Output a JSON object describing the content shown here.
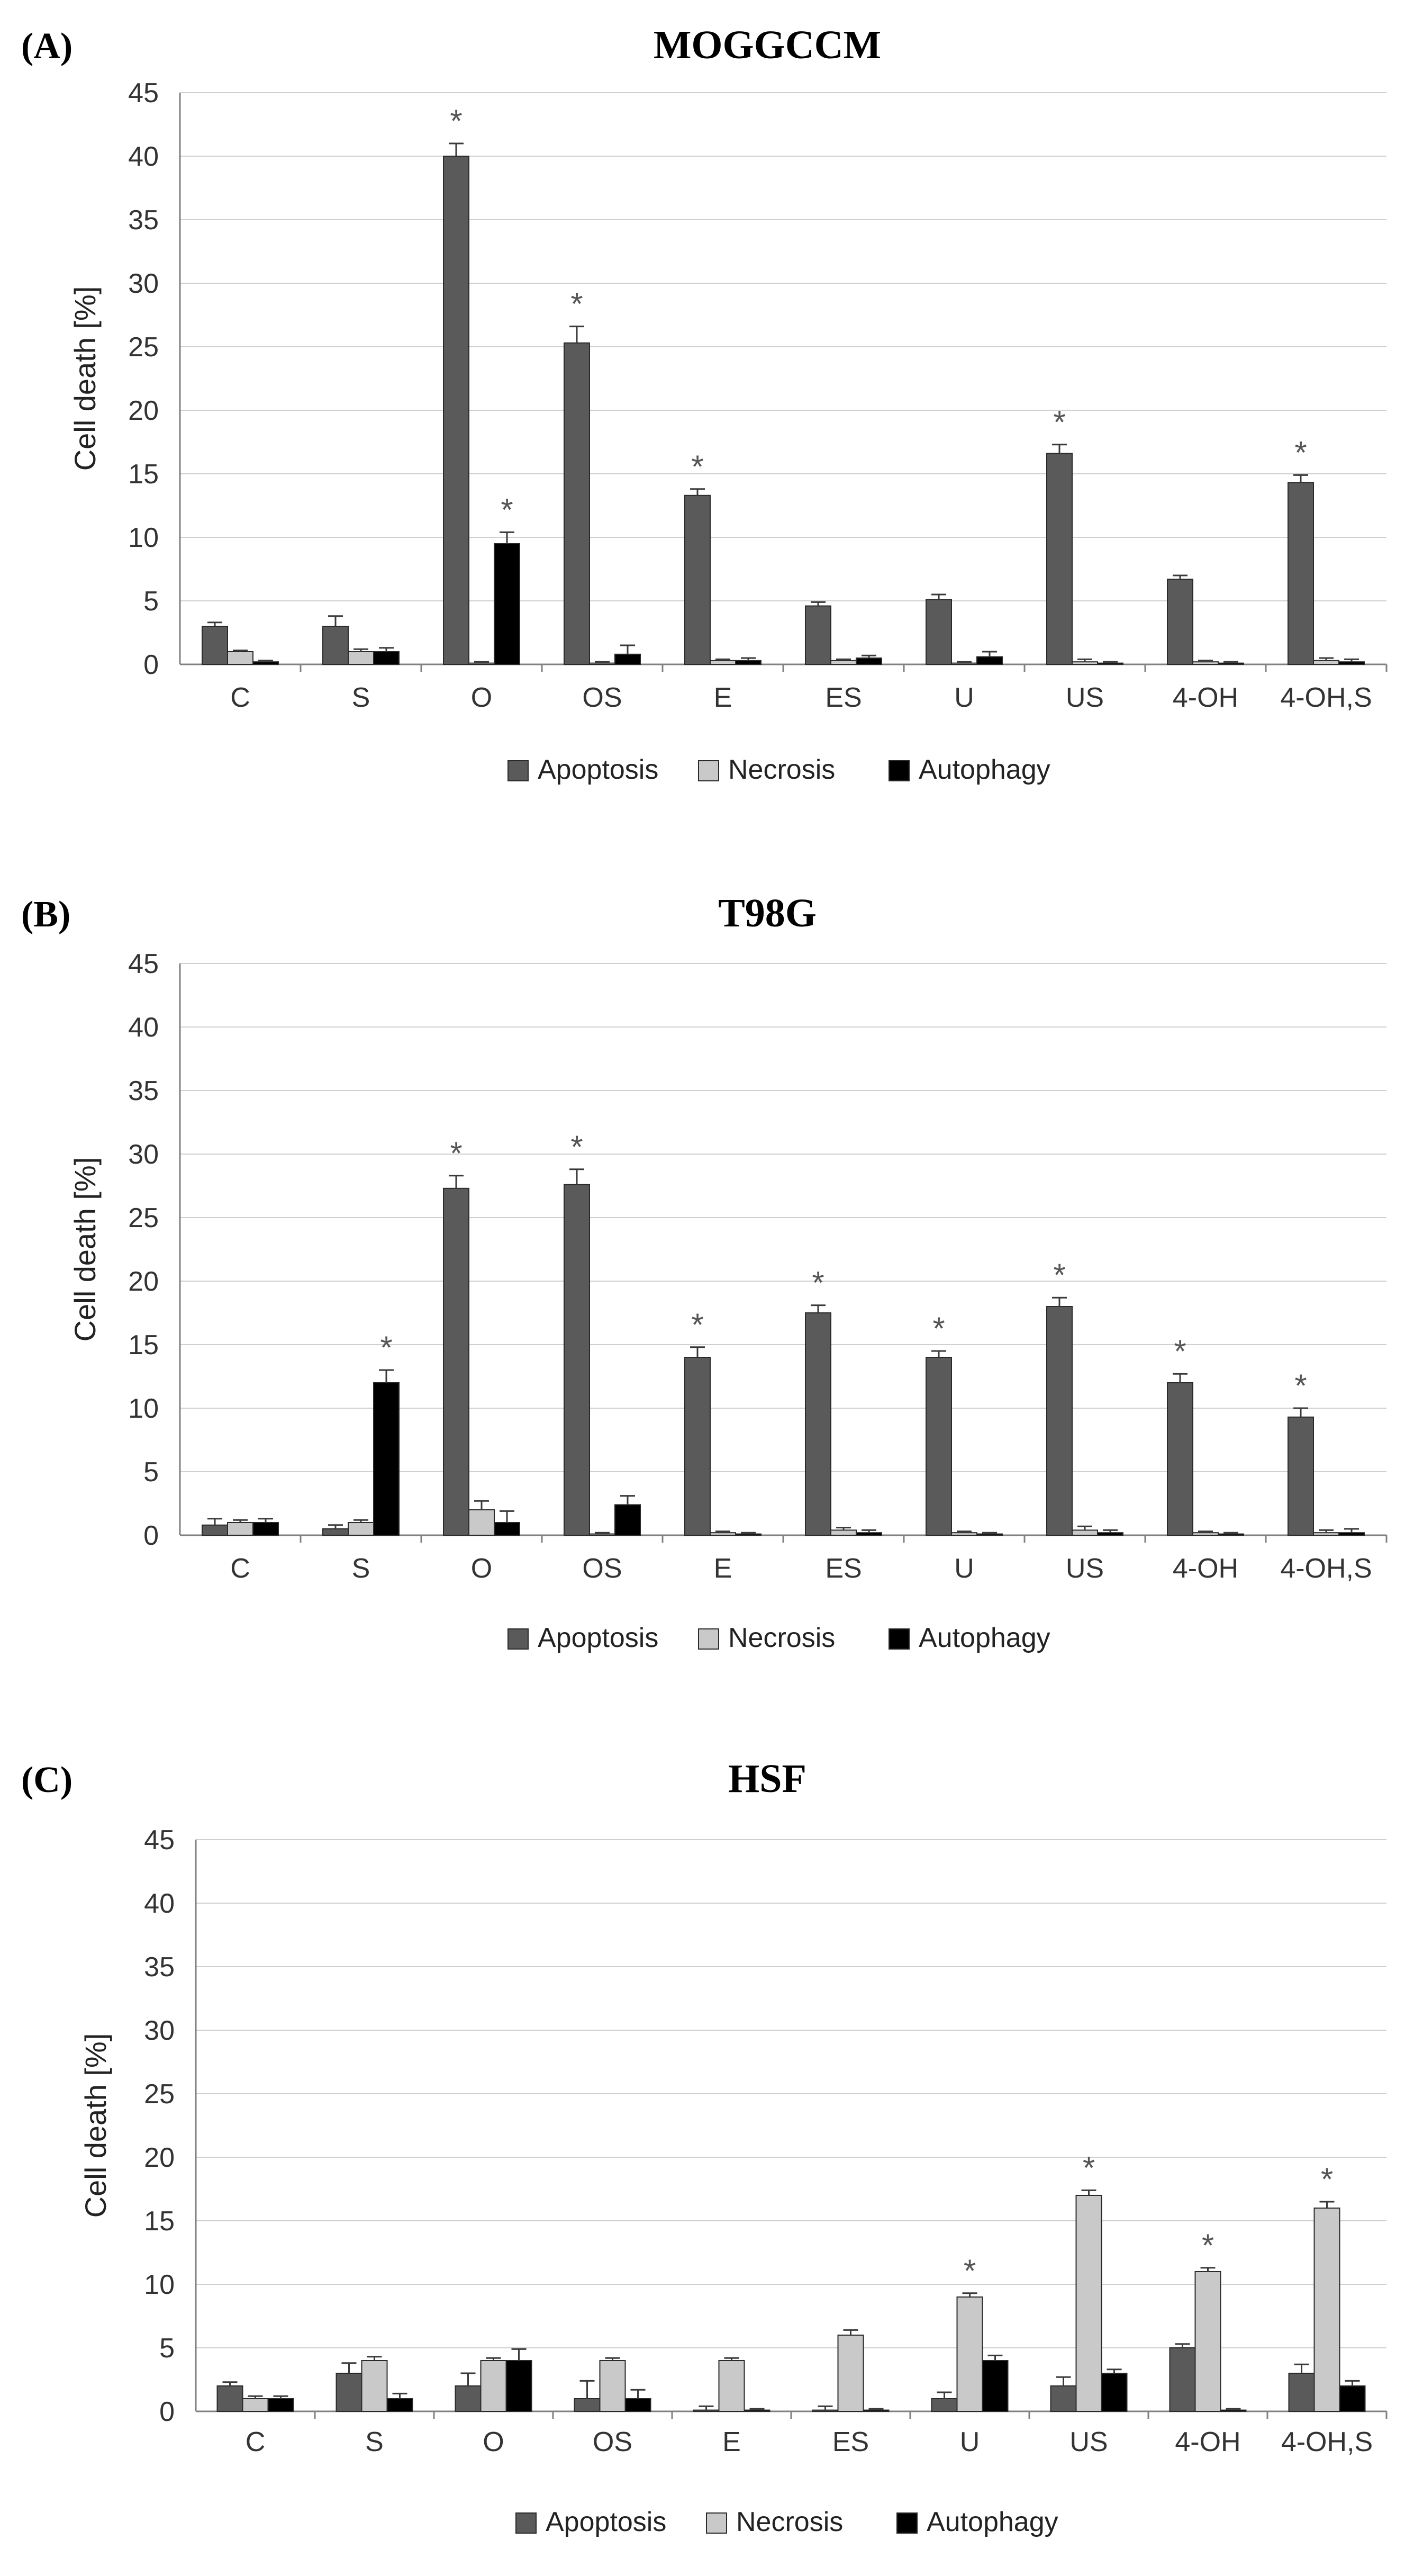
{
  "colors": {
    "Apoptosis": "#5a5a5a",
    "Necrosis": "#c9c9c9",
    "Autophagy": "#000000"
  },
  "chart_data": [
    {
      "type": "bar",
      "panel": "(A)",
      "title": "MOGGCCM",
      "ylabel": "Cell death [%]",
      "xlabel": "",
      "ylim": [
        0,
        45
      ],
      "yticks": [
        0,
        5,
        10,
        15,
        20,
        25,
        30,
        35,
        40,
        45
      ],
      "grid": true,
      "legend": "bottom",
      "categories": [
        "C",
        "S",
        "O",
        "OS",
        "E",
        "ES",
        "U",
        "US",
        "4-OH",
        "4-OH,S"
      ],
      "series": [
        {
          "name": "Apoptosis",
          "values": [
            3.0,
            3.0,
            40.0,
            25.3,
            13.3,
            4.6,
            5.1,
            16.6,
            6.7,
            14.3
          ],
          "errors": [
            0.3,
            0.8,
            1.0,
            1.3,
            0.5,
            0.3,
            0.4,
            0.7,
            0.3,
            0.6
          ],
          "stars": [
            false,
            false,
            true,
            true,
            true,
            false,
            false,
            true,
            false,
            true
          ]
        },
        {
          "name": "Necrosis",
          "values": [
            1.0,
            1.0,
            0.1,
            0.1,
            0.3,
            0.3,
            0.1,
            0.2,
            0.2,
            0.3
          ],
          "errors": [
            0.1,
            0.2,
            0.1,
            0.1,
            0.1,
            0.1,
            0.1,
            0.2,
            0.1,
            0.2
          ],
          "stars": [
            false,
            false,
            false,
            false,
            false,
            false,
            false,
            false,
            false,
            false
          ]
        },
        {
          "name": "Autophagy",
          "values": [
            0.2,
            1.0,
            9.5,
            0.8,
            0.3,
            0.5,
            0.6,
            0.1,
            0.1,
            0.2
          ],
          "errors": [
            0.1,
            0.3,
            0.9,
            0.7,
            0.2,
            0.2,
            0.4,
            0.1,
            0.1,
            0.2
          ],
          "stars": [
            false,
            false,
            true,
            false,
            false,
            false,
            false,
            false,
            false,
            false
          ]
        }
      ]
    },
    {
      "type": "bar",
      "panel": "(B)",
      "title": "T98G",
      "ylabel": "Cell death [%]",
      "xlabel": "",
      "ylim": [
        0,
        45
      ],
      "yticks": [
        0,
        5,
        10,
        15,
        20,
        25,
        30,
        35,
        40,
        45
      ],
      "grid": true,
      "legend": "bottom",
      "categories": [
        "C",
        "S",
        "O",
        "OS",
        "E",
        "ES",
        "U",
        "US",
        "4-OH",
        "4-OH,S"
      ],
      "series": [
        {
          "name": "Apoptosis",
          "values": [
            0.8,
            0.5,
            27.3,
            27.6,
            14.0,
            17.5,
            14.0,
            18.0,
            12.0,
            9.3
          ],
          "errors": [
            0.5,
            0.3,
            1.0,
            1.2,
            0.8,
            0.6,
            0.5,
            0.7,
            0.7,
            0.7
          ],
          "stars": [
            false,
            false,
            true,
            true,
            true,
            true,
            true,
            true,
            true,
            true
          ]
        },
        {
          "name": "Necrosis",
          "values": [
            1.0,
            1.0,
            2.0,
            0.1,
            0.2,
            0.4,
            0.2,
            0.4,
            0.2,
            0.2
          ],
          "errors": [
            0.2,
            0.2,
            0.7,
            0.1,
            0.1,
            0.2,
            0.1,
            0.3,
            0.1,
            0.2
          ],
          "stars": [
            false,
            false,
            false,
            false,
            false,
            false,
            false,
            false,
            false,
            false
          ]
        },
        {
          "name": "Autophagy",
          "values": [
            1.0,
            12.0,
            1.0,
            2.4,
            0.1,
            0.2,
            0.1,
            0.2,
            0.1,
            0.2
          ],
          "errors": [
            0.3,
            1.0,
            0.9,
            0.7,
            0.1,
            0.2,
            0.1,
            0.2,
            0.1,
            0.3
          ],
          "stars": [
            false,
            true,
            false,
            false,
            false,
            false,
            false,
            false,
            false,
            false
          ]
        }
      ]
    },
    {
      "type": "bar",
      "panel": "(C)",
      "title": "HSF",
      "ylabel": "Cell death [%]",
      "xlabel": "",
      "ylim": [
        0,
        45
      ],
      "yticks": [
        0,
        5,
        10,
        15,
        20,
        25,
        30,
        35,
        40,
        45
      ],
      "grid": true,
      "legend": "bottom",
      "categories": [
        "C",
        "S",
        "O",
        "OS",
        "E",
        "ES",
        "U",
        "US",
        "4-OH",
        "4-OH,S"
      ],
      "series": [
        {
          "name": "Apoptosis",
          "values": [
            2.0,
            3.0,
            2.0,
            1.0,
            0.1,
            0.1,
            1.0,
            2.0,
            5.0,
            3.0
          ],
          "errors": [
            0.3,
            0.8,
            1.0,
            1.4,
            0.3,
            0.3,
            0.5,
            0.7,
            0.3,
            0.7
          ],
          "stars": [
            false,
            false,
            false,
            false,
            false,
            false,
            false,
            false,
            false,
            false
          ]
        },
        {
          "name": "Necrosis",
          "values": [
            1.0,
            4.0,
            4.0,
            4.0,
            4.0,
            6.0,
            9.0,
            17.0,
            11.0,
            16.0
          ],
          "errors": [
            0.2,
            0.3,
            0.2,
            0.2,
            0.2,
            0.4,
            0.3,
            0.4,
            0.3,
            0.5
          ],
          "stars": [
            false,
            false,
            false,
            false,
            false,
            false,
            true,
            true,
            true,
            true
          ]
        },
        {
          "name": "Autophagy",
          "values": [
            1.0,
            1.0,
            4.0,
            1.0,
            0.1,
            0.1,
            4.0,
            3.0,
            0.1,
            2.0
          ],
          "errors": [
            0.2,
            0.4,
            0.9,
            0.7,
            0.1,
            0.1,
            0.4,
            0.3,
            0.1,
            0.4
          ],
          "stars": [
            false,
            false,
            false,
            false,
            false,
            false,
            false,
            false,
            false,
            false
          ]
        }
      ]
    }
  ],
  "significance_marker": "*"
}
